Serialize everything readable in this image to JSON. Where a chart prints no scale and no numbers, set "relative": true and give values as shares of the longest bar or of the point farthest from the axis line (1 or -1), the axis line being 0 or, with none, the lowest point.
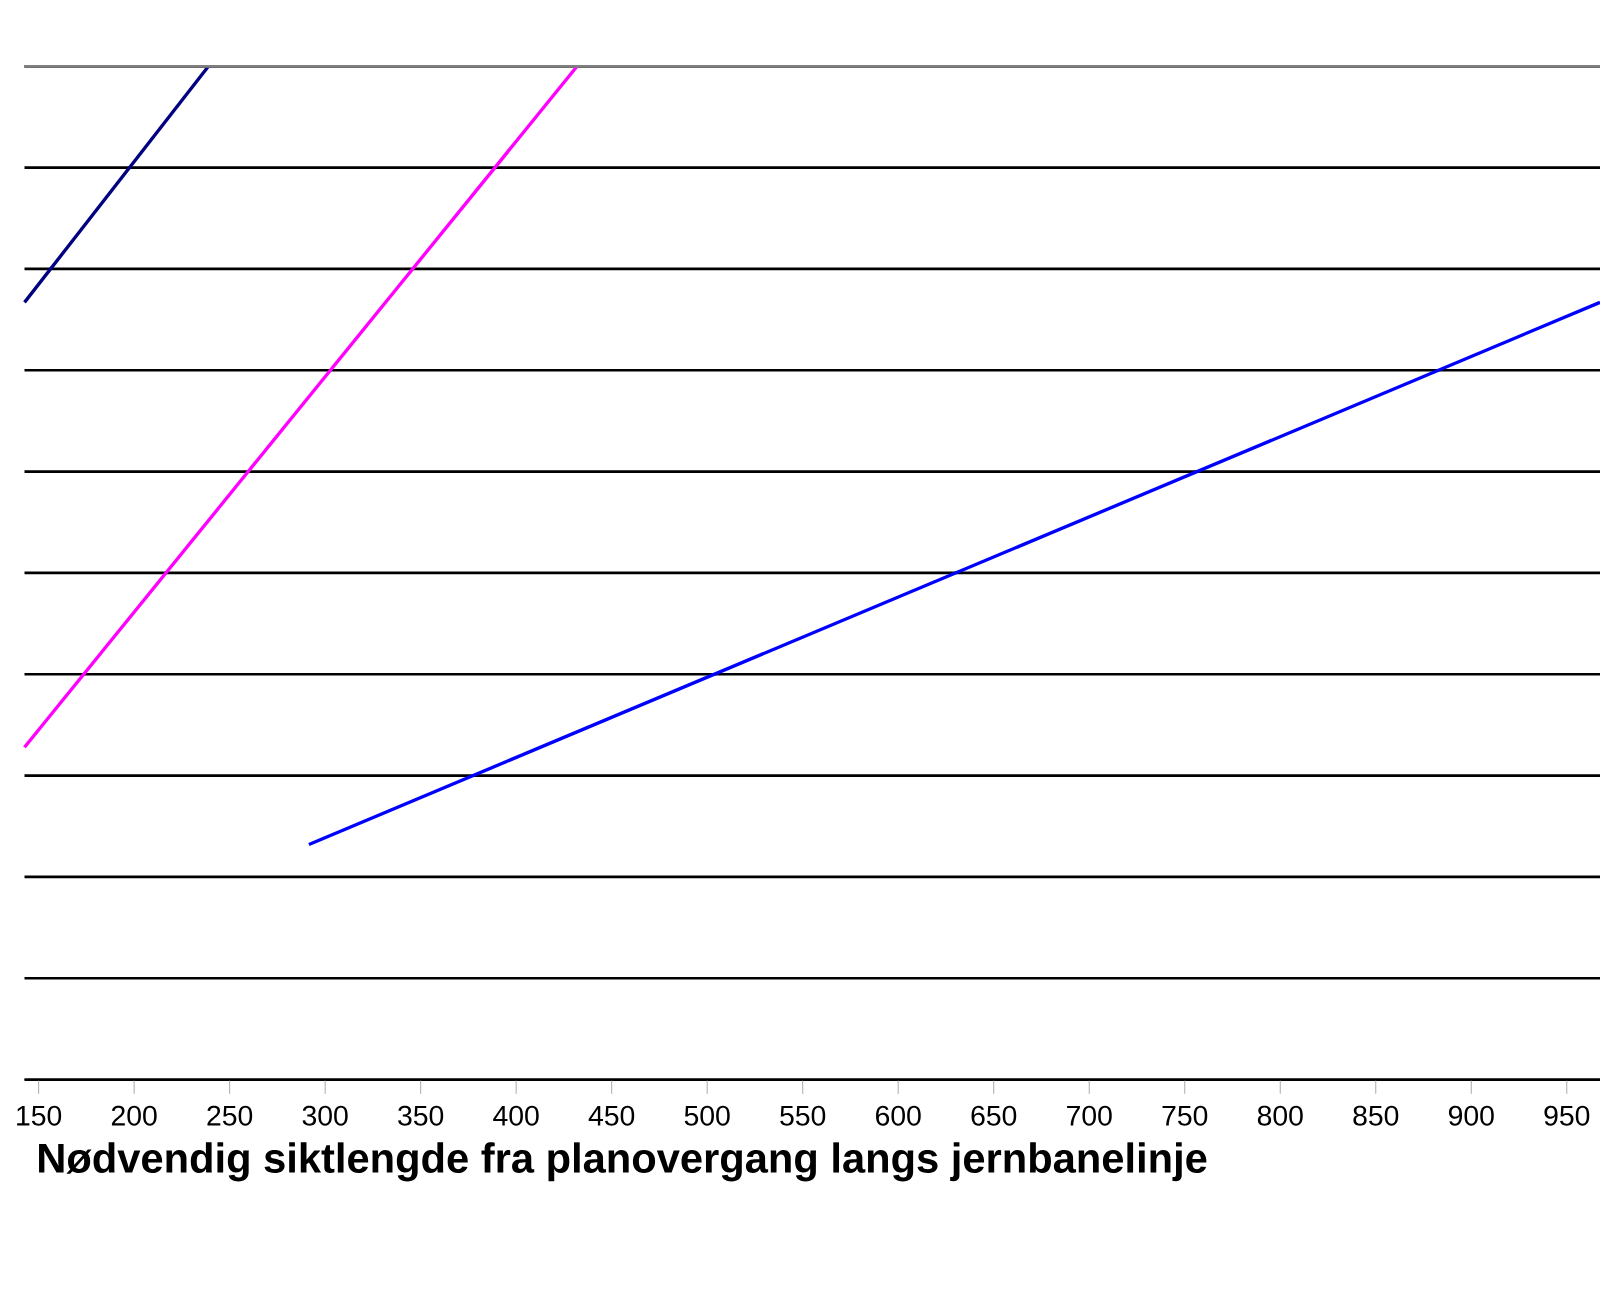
{
  "chart_data": {
    "type": "line",
    "xlabel": "Nødvendig siktlengde fra planovergang langs jernbanelinje",
    "relative": true,
    "xlim": [
      142.6,
      967.4
    ],
    "xticks": [
      150,
      200,
      250,
      300,
      350,
      400,
      450,
      500,
      550,
      600,
      650,
      700,
      750,
      800,
      850,
      900,
      950
    ],
    "grid": "y",
    "marker": "none",
    "line_style": "solid",
    "series": [
      {
        "color": "#000080",
        "x": [
          142.6,
          238.9
        ],
        "values": [
          0.767,
          1
        ]
      },
      {
        "color": "#ff00ff",
        "x": [
          142.6,
          431.9
        ],
        "values": [
          0.328,
          1
        ]
      },
      {
        "color": "#0000ff",
        "x": [
          291.5,
          967.4
        ],
        "values": [
          0.232,
          0.767
        ]
      }
    ]
  }
}
